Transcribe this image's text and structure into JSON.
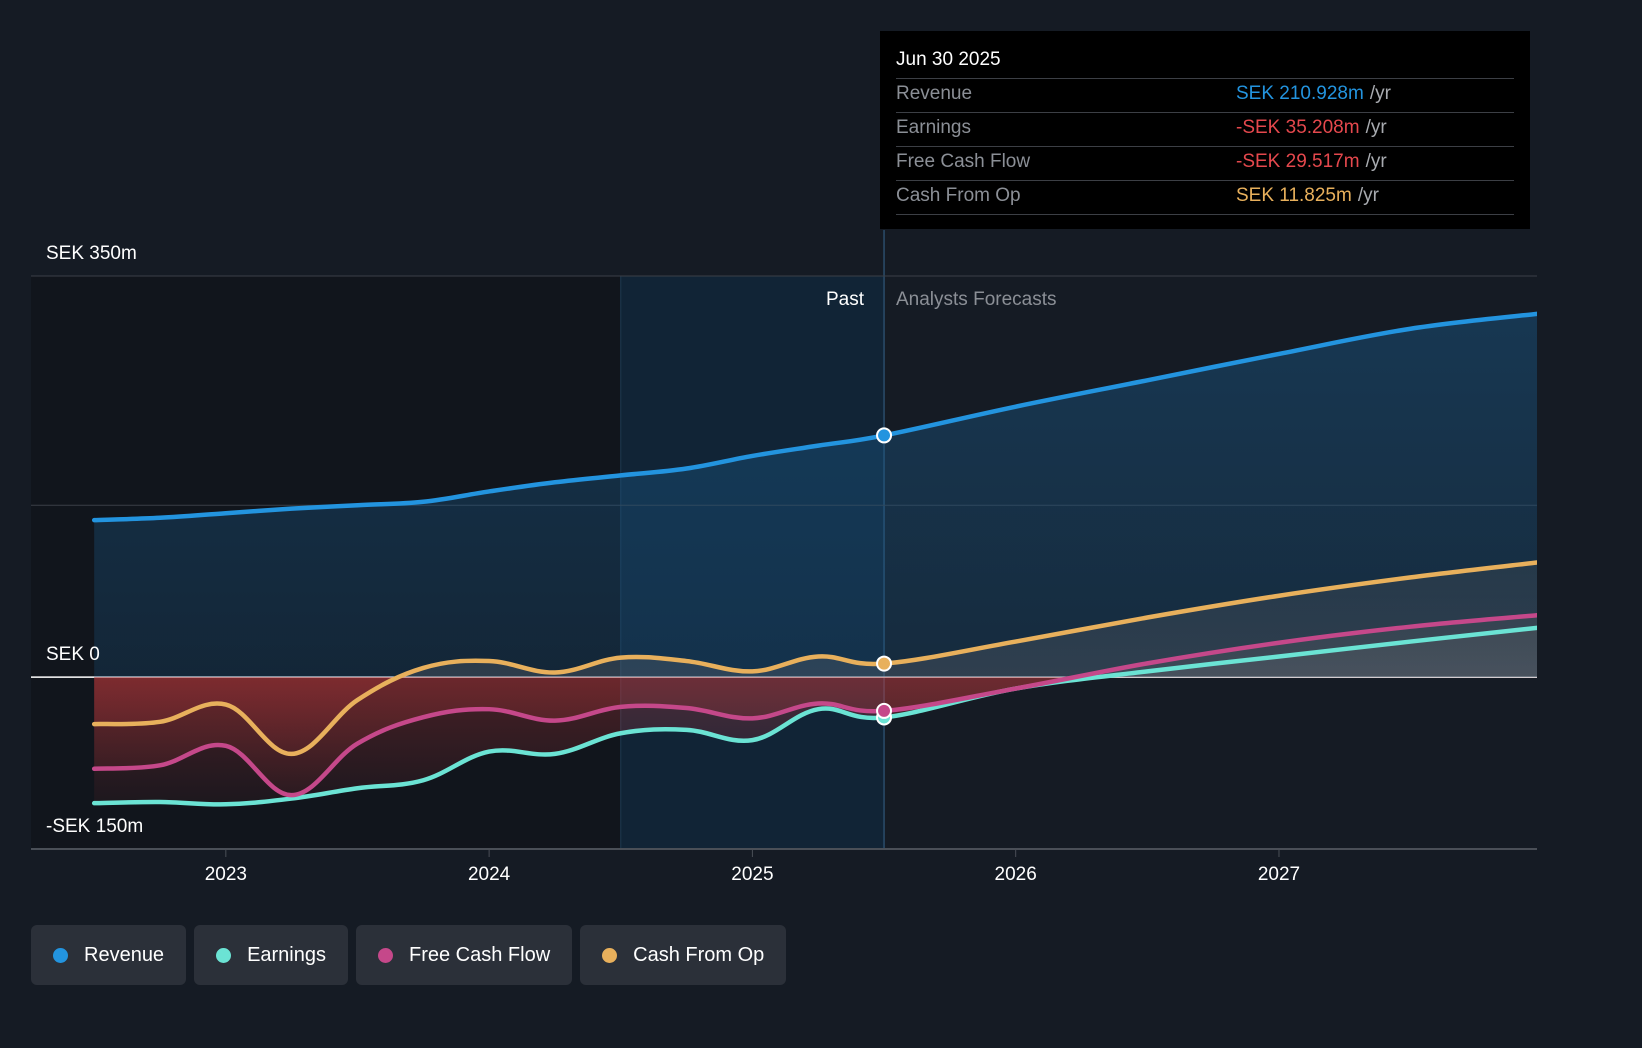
{
  "chart_data": {
    "type": "line",
    "title": "",
    "currency": "SEK",
    "yaxis": {
      "labels": [
        {
          "value": 350,
          "text": "SEK 350m"
        },
        {
          "value": 0,
          "text": "SEK 0"
        },
        {
          "value": -150,
          "text": "-SEK 150m"
        }
      ],
      "ylim": [
        -150,
        350
      ],
      "gridlines": [
        350,
        150,
        0
      ]
    },
    "xaxis": {
      "ticks": [
        {
          "value": 2023,
          "text": "2023"
        },
        {
          "value": 2024,
          "text": "2024"
        },
        {
          "value": 2025,
          "text": "2025"
        },
        {
          "value": 2026,
          "text": "2026"
        },
        {
          "value": 2027,
          "text": "2027"
        }
      ],
      "xlim": [
        2022.26,
        2027.98
      ]
    },
    "past_label": "Past",
    "forecast_label": "Analysts Forecasts",
    "divider_x": 2025.5,
    "highlight_range": [
      2024.5,
      2025.5
    ],
    "series": [
      {
        "name": "Revenue",
        "color": "#2394df",
        "points": [
          [
            2022.5,
            137
          ],
          [
            2022.75,
            139
          ],
          [
            2023.0,
            143
          ],
          [
            2023.25,
            147
          ],
          [
            2023.5,
            150
          ],
          [
            2023.75,
            153
          ],
          [
            2024.0,
            162
          ],
          [
            2024.25,
            170
          ],
          [
            2024.5,
            176
          ],
          [
            2024.75,
            182
          ],
          [
            2025.0,
            193
          ],
          [
            2025.25,
            202
          ],
          [
            2025.5,
            210.9
          ],
          [
            2026.0,
            236
          ],
          [
            2026.5,
            259
          ],
          [
            2027.0,
            282
          ],
          [
            2027.5,
            304
          ],
          [
            2027.98,
            317
          ]
        ]
      },
      {
        "name": "Earnings",
        "color": "#6be3d4",
        "points": [
          [
            2022.5,
            -110
          ],
          [
            2022.75,
            -109
          ],
          [
            2023.0,
            -111
          ],
          [
            2023.25,
            -106
          ],
          [
            2023.5,
            -97
          ],
          [
            2023.75,
            -90
          ],
          [
            2024.0,
            -65
          ],
          [
            2024.25,
            -67
          ],
          [
            2024.5,
            -49
          ],
          [
            2024.75,
            -46
          ],
          [
            2025.0,
            -55
          ],
          [
            2025.25,
            -28
          ],
          [
            2025.5,
            -35.2
          ],
          [
            2026.0,
            -10
          ],
          [
            2026.5,
            5
          ],
          [
            2027.0,
            18
          ],
          [
            2027.5,
            31
          ],
          [
            2027.98,
            43
          ]
        ]
      },
      {
        "name": "Free Cash Flow",
        "color": "#c5488a",
        "points": [
          [
            2022.5,
            -80
          ],
          [
            2022.75,
            -77
          ],
          [
            2023.0,
            -60
          ],
          [
            2023.25,
            -103
          ],
          [
            2023.5,
            -58
          ],
          [
            2023.75,
            -35
          ],
          [
            2024.0,
            -28
          ],
          [
            2024.25,
            -38
          ],
          [
            2024.5,
            -26
          ],
          [
            2024.75,
            -27
          ],
          [
            2025.0,
            -36
          ],
          [
            2025.25,
            -23
          ],
          [
            2025.5,
            -29.5
          ],
          [
            2026.0,
            -10
          ],
          [
            2026.5,
            12
          ],
          [
            2027.0,
            30
          ],
          [
            2027.5,
            44
          ],
          [
            2027.98,
            54
          ]
        ]
      },
      {
        "name": "Cash From Op",
        "color": "#e8b05c",
        "points": [
          [
            2022.5,
            -41
          ],
          [
            2022.75,
            -39
          ],
          [
            2023.0,
            -24
          ],
          [
            2023.25,
            -67
          ],
          [
            2023.5,
            -20
          ],
          [
            2023.75,
            8
          ],
          [
            2024.0,
            14
          ],
          [
            2024.25,
            4
          ],
          [
            2024.5,
            17
          ],
          [
            2024.75,
            14
          ],
          [
            2025.0,
            5
          ],
          [
            2025.25,
            18
          ],
          [
            2025.5,
            11.8
          ],
          [
            2026.0,
            31
          ],
          [
            2026.5,
            52
          ],
          [
            2027.0,
            71
          ],
          [
            2027.5,
            87
          ],
          [
            2027.98,
            100
          ]
        ]
      }
    ]
  },
  "tooltip": {
    "date": "Jun 30 2025",
    "unit": "/yr",
    "rows": [
      {
        "name": "Revenue",
        "value": "SEK 210.928m",
        "color": "#2394df"
      },
      {
        "name": "Earnings",
        "value": "-SEK 35.208m",
        "color": "#e5484d"
      },
      {
        "name": "Free Cash Flow",
        "value": "-SEK 29.517m",
        "color": "#e5484d"
      },
      {
        "name": "Cash From Op",
        "value": "SEK 11.825m",
        "color": "#e8b05c"
      }
    ]
  },
  "legend": [
    {
      "label": "Revenue",
      "color": "#2394df"
    },
    {
      "label": "Earnings",
      "color": "#6be3d4"
    },
    {
      "label": "Free Cash Flow",
      "color": "#c5488a"
    },
    {
      "label": "Cash From Op",
      "color": "#e8b05c"
    }
  ]
}
